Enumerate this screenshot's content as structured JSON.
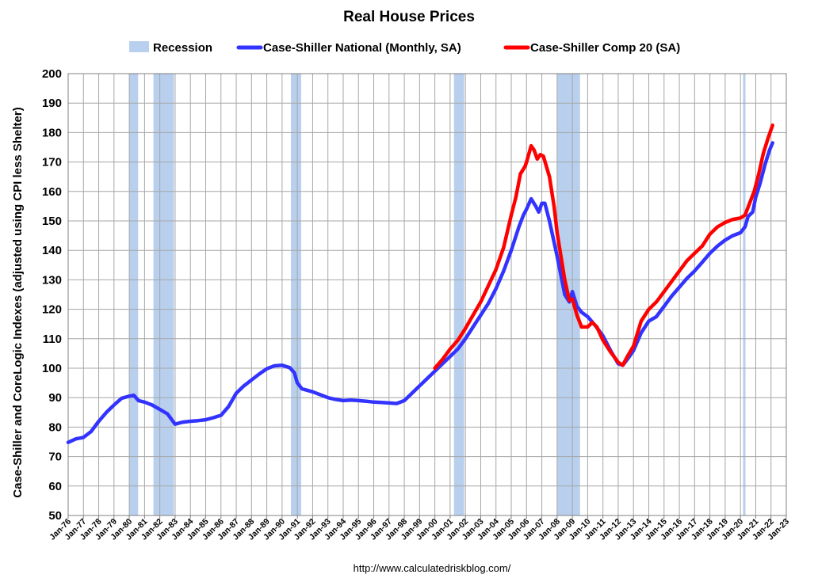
{
  "chart_data": {
    "type": "line",
    "title": "Real House Prices",
    "ylabel": "Case-Shiller and CoreLogic Indexes (adjusted using CPI less Shelter)",
    "xlabel": "",
    "source": "http://www.calculatedriskblog.com/",
    "ylim": [
      50,
      200
    ],
    "yticks": [
      50,
      60,
      70,
      80,
      90,
      100,
      110,
      120,
      130,
      140,
      150,
      160,
      170,
      180,
      190,
      200
    ],
    "xlim": [
      1976.0,
      2023.0
    ],
    "xtick_labels": [
      "Jan-76",
      "Jan-77",
      "Jan-78",
      "Jan-79",
      "Jan-80",
      "Jan-81",
      "Jan-82",
      "Jan-83",
      "Jan-84",
      "Jan-85",
      "Jan-86",
      "Jan-87",
      "Jan-88",
      "Jan-89",
      "Jan-90",
      "Jan-91",
      "Jan-92",
      "Jan-93",
      "Jan-94",
      "Jan-95",
      "Jan-96",
      "Jan-97",
      "Jan-98",
      "Jan-99",
      "Jan-00",
      "Jan-01",
      "Jan-02",
      "Jan-03",
      "Jan-04",
      "Jan-05",
      "Jan-06",
      "Jan-07",
      "Jan-08",
      "Jan-09",
      "Jan-10",
      "Jan-11",
      "Jan-12",
      "Jan-13",
      "Jan-14",
      "Jan-15",
      "Jan-16",
      "Jan-17",
      "Jan-18",
      "Jan-19",
      "Jan-20",
      "Jan-21",
      "Jan-22",
      "Jan-23"
    ],
    "grid": true,
    "legend_position": "top",
    "legend": [
      {
        "name": "Recession",
        "kind": "band",
        "color": "#b8d0ee"
      },
      {
        "name": "Case-Shiller National (Monthly, SA)",
        "kind": "line",
        "color": "#3333ff"
      },
      {
        "name": "Case-Shiller Comp 20  (SA)",
        "kind": "line",
        "color": "#ff0000"
      }
    ],
    "recessions": [
      [
        1980.0,
        1980.58
      ],
      [
        1981.58,
        1982.92
      ],
      [
        1990.58,
        1991.25
      ],
      [
        2001.25,
        2001.92
      ],
      [
        2008.0,
        2009.5
      ],
      [
        2020.17,
        2020.33
      ]
    ],
    "series": [
      {
        "name": "Case-Shiller National (Monthly, SA)",
        "color": "#3333ff",
        "points": [
          [
            1976.0,
            74.8
          ],
          [
            1976.5,
            76.0
          ],
          [
            1977.0,
            76.5
          ],
          [
            1977.5,
            78.5
          ],
          [
            1978.0,
            82.0
          ],
          [
            1978.5,
            85.0
          ],
          [
            1979.0,
            87.5
          ],
          [
            1979.5,
            89.8
          ],
          [
            1980.0,
            90.5
          ],
          [
            1980.3,
            90.8
          ],
          [
            1980.6,
            89.0
          ],
          [
            1981.0,
            88.5
          ],
          [
            1981.5,
            87.5
          ],
          [
            1982.0,
            86.0
          ],
          [
            1982.5,
            84.5
          ],
          [
            1983.0,
            81.0
          ],
          [
            1983.5,
            81.7
          ],
          [
            1984.0,
            82.0
          ],
          [
            1984.5,
            82.2
          ],
          [
            1985.0,
            82.5
          ],
          [
            1985.5,
            83.2
          ],
          [
            1986.0,
            84.0
          ],
          [
            1986.5,
            87.0
          ],
          [
            1987.0,
            91.5
          ],
          [
            1987.5,
            94.0
          ],
          [
            1988.0,
            96.0
          ],
          [
            1988.5,
            98.0
          ],
          [
            1989.0,
            99.8
          ],
          [
            1989.5,
            100.8
          ],
          [
            1990.0,
            101.0
          ],
          [
            1990.5,
            100.2
          ],
          [
            1990.8,
            98.5
          ],
          [
            1991.0,
            95.0
          ],
          [
            1991.3,
            93.0
          ],
          [
            1992.0,
            92.0
          ],
          [
            1992.5,
            91.0
          ],
          [
            1993.0,
            90.0
          ],
          [
            1993.5,
            89.4
          ],
          [
            1994.0,
            89.0
          ],
          [
            1994.5,
            89.2
          ],
          [
            1995.0,
            89.0
          ],
          [
            1995.5,
            88.8
          ],
          [
            1996.0,
            88.5
          ],
          [
            1996.5,
            88.4
          ],
          [
            1997.0,
            88.2
          ],
          [
            1997.5,
            88.0
          ],
          [
            1998.0,
            89.0
          ],
          [
            1998.5,
            91.5
          ],
          [
            1999.0,
            94.0
          ],
          [
            1999.5,
            96.5
          ],
          [
            2000.0,
            99.0
          ],
          [
            2000.5,
            101.5
          ],
          [
            2001.0,
            104.0
          ],
          [
            2001.5,
            106.5
          ],
          [
            2002.0,
            110.0
          ],
          [
            2002.5,
            114.0
          ],
          [
            2003.0,
            118.0
          ],
          [
            2003.5,
            122.0
          ],
          [
            2004.0,
            127.0
          ],
          [
            2004.5,
            133.0
          ],
          [
            2005.0,
            140.0
          ],
          [
            2005.5,
            148.0
          ],
          [
            2005.8,
            152.0
          ],
          [
            2006.0,
            154.0
          ],
          [
            2006.3,
            157.5
          ],
          [
            2006.6,
            155.0
          ],
          [
            2006.8,
            153.0
          ],
          [
            2007.0,
            156.0
          ],
          [
            2007.2,
            156.0
          ],
          [
            2007.5,
            150.0
          ],
          [
            2008.0,
            138.0
          ],
          [
            2008.5,
            125.0
          ],
          [
            2008.8,
            122.5
          ],
          [
            2009.0,
            126.0
          ],
          [
            2009.3,
            121.0
          ],
          [
            2009.6,
            119.0
          ],
          [
            2010.0,
            117.5
          ],
          [
            2010.5,
            114.5
          ],
          [
            2011.0,
            111.0
          ],
          [
            2011.5,
            106.0
          ],
          [
            2012.0,
            101.5
          ],
          [
            2012.3,
            101.0
          ],
          [
            2012.6,
            103.0
          ],
          [
            2013.0,
            106.0
          ],
          [
            2013.5,
            112.0
          ],
          [
            2014.0,
            116.0
          ],
          [
            2014.5,
            117.5
          ],
          [
            2015.0,
            121.0
          ],
          [
            2015.5,
            124.5
          ],
          [
            2016.0,
            127.5
          ],
          [
            2016.5,
            130.5
          ],
          [
            2017.0,
            133.0
          ],
          [
            2017.5,
            136.0
          ],
          [
            2018.0,
            139.0
          ],
          [
            2018.5,
            141.5
          ],
          [
            2019.0,
            143.5
          ],
          [
            2019.5,
            145.0
          ],
          [
            2020.0,
            146.0
          ],
          [
            2020.3,
            148.0
          ],
          [
            2020.5,
            151.5
          ],
          [
            2020.8,
            153.0
          ],
          [
            2021.0,
            158.0
          ],
          [
            2021.3,
            163.0
          ],
          [
            2021.6,
            169.0
          ],
          [
            2021.9,
            174.0
          ],
          [
            2022.1,
            176.5
          ]
        ]
      },
      {
        "name": "Case-Shiller Comp 20  (SA)",
        "color": "#ff0000",
        "points": [
          [
            2000.0,
            100.0
          ],
          [
            2000.5,
            103.0
          ],
          [
            2001.0,
            106.5
          ],
          [
            2001.5,
            109.5
          ],
          [
            2002.0,
            113.5
          ],
          [
            2002.5,
            118.0
          ],
          [
            2003.0,
            122.5
          ],
          [
            2003.5,
            128.0
          ],
          [
            2004.0,
            133.5
          ],
          [
            2004.5,
            141.0
          ],
          [
            2005.0,
            152.0
          ],
          [
            2005.3,
            158.0
          ],
          [
            2005.6,
            166.0
          ],
          [
            2005.9,
            168.5
          ],
          [
            2006.0,
            170.0
          ],
          [
            2006.3,
            175.5
          ],
          [
            2006.5,
            174.0
          ],
          [
            2006.7,
            171.0
          ],
          [
            2006.9,
            172.5
          ],
          [
            2007.1,
            172.0
          ],
          [
            2007.5,
            165.0
          ],
          [
            2007.8,
            155.0
          ],
          [
            2008.0,
            146.0
          ],
          [
            2008.5,
            130.0
          ],
          [
            2008.8,
            123.0
          ],
          [
            2009.0,
            123.5
          ],
          [
            2009.3,
            118.0
          ],
          [
            2009.6,
            114.0
          ],
          [
            2010.0,
            114.0
          ],
          [
            2010.3,
            115.5
          ],
          [
            2010.6,
            114.0
          ],
          [
            2011.0,
            109.5
          ],
          [
            2011.5,
            105.5
          ],
          [
            2012.0,
            102.0
          ],
          [
            2012.3,
            101.0
          ],
          [
            2012.6,
            104.0
          ],
          [
            2013.0,
            107.5
          ],
          [
            2013.5,
            116.0
          ],
          [
            2014.0,
            120.0
          ],
          [
            2014.5,
            122.5
          ],
          [
            2015.0,
            126.0
          ],
          [
            2015.5,
            129.5
          ],
          [
            2016.0,
            133.0
          ],
          [
            2016.5,
            136.5
          ],
          [
            2017.0,
            139.0
          ],
          [
            2017.5,
            141.5
          ],
          [
            2018.0,
            145.5
          ],
          [
            2018.5,
            148.0
          ],
          [
            2019.0,
            149.5
          ],
          [
            2019.5,
            150.5
          ],
          [
            2020.0,
            151.0
          ],
          [
            2020.3,
            152.0
          ],
          [
            2020.6,
            156.0
          ],
          [
            2020.9,
            160.0
          ],
          [
            2021.2,
            166.0
          ],
          [
            2021.5,
            173.0
          ],
          [
            2021.8,
            178.0
          ],
          [
            2022.1,
            182.5
          ]
        ]
      }
    ]
  }
}
